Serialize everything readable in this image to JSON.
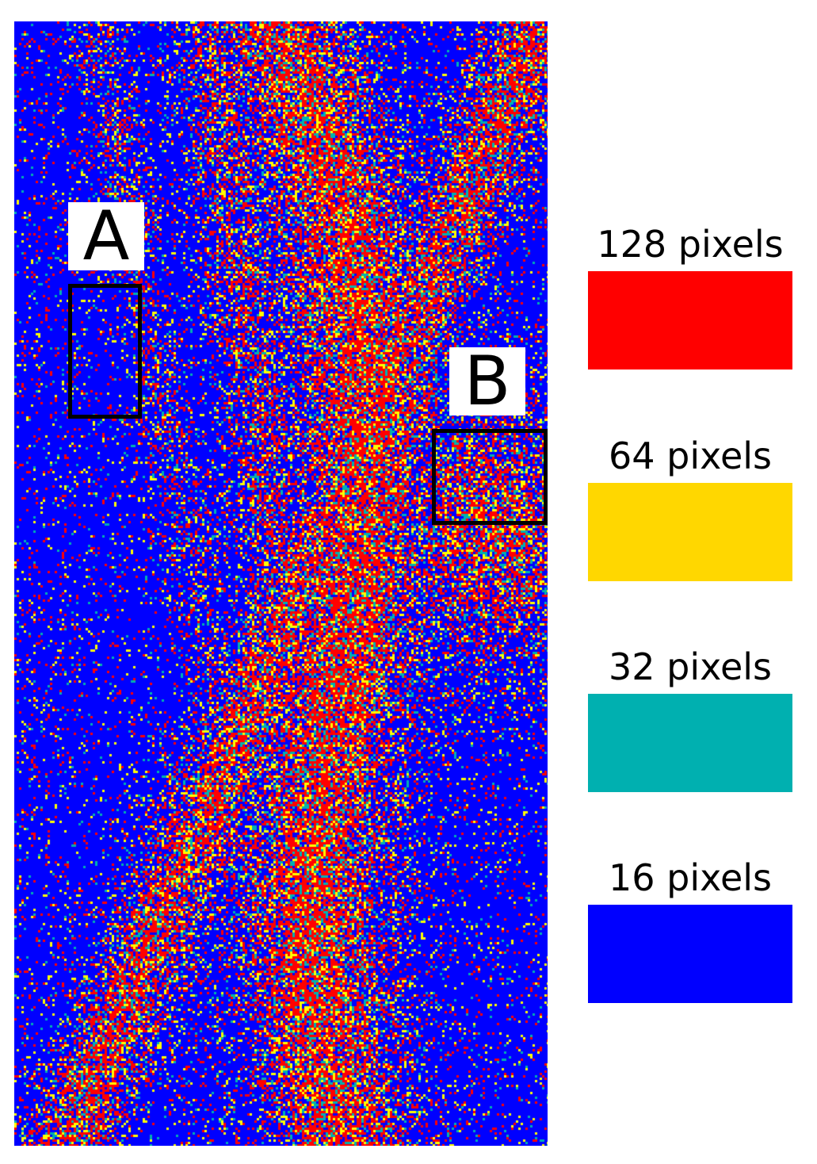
{
  "map": {
    "palette": [
      "#0000ff",
      "#00b0b0",
      "#ffff00",
      "#ff0000"
    ]
  },
  "regions": [
    {
      "label": "A"
    },
    {
      "label": "B"
    }
  ],
  "legend": [
    {
      "label": "128 pixels",
      "color": "#ff0000"
    },
    {
      "label": "64 pixels",
      "color": "#ffd700"
    },
    {
      "label": "32 pixels",
      "color": "#00b0b0"
    },
    {
      "label": "16 pixels",
      "color": "#0000ff"
    }
  ]
}
